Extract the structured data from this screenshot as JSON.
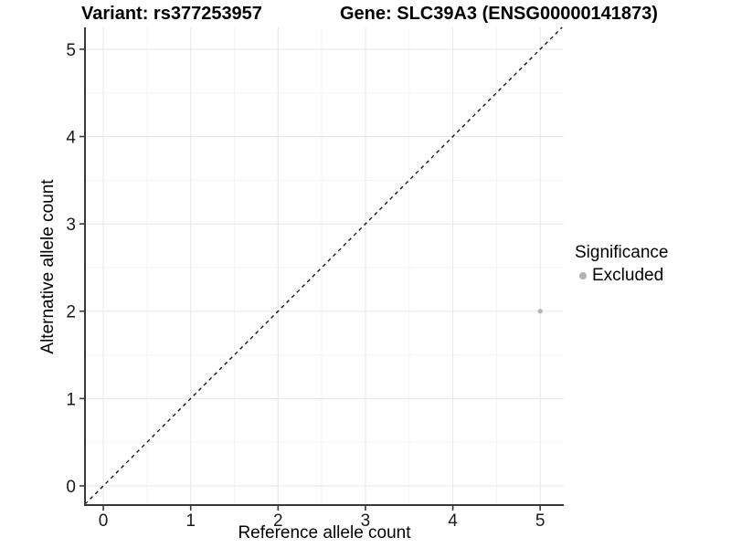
{
  "page": {
    "background_color": "#ffffff"
  },
  "chart_data": {
    "type": "scatter",
    "titles": {
      "left": "Variant: rs377253957",
      "right": "Gene: SLC39A3 (ENSG00000141873)"
    },
    "xlabel": "Reference allele count",
    "ylabel": "Alternative allele count",
    "x_ticks": [
      0,
      1,
      2,
      3,
      4,
      5
    ],
    "y_ticks": [
      0,
      1,
      2,
      3,
      4,
      5
    ],
    "xlim": [
      -0.21,
      5.27
    ],
    "ylim": [
      -0.22,
      5.25
    ],
    "grid": {
      "major": true,
      "minor": true
    },
    "points": [
      {
        "x": 5,
        "y": 2,
        "series": "Excluded"
      }
    ],
    "reference_line": {
      "kind": "identity-diagonal",
      "style": "dashed"
    },
    "legend": {
      "title": "Significance",
      "position": "right",
      "entries": [
        {
          "label": "Excluded",
          "color": "#b0b0b0"
        }
      ]
    },
    "colors": {
      "background": "#ffffff",
      "grid_major": "#e7e7e7",
      "grid_minor": "#f3f3f3",
      "axis_line": "#383838",
      "tick_mark": "#383838",
      "tick_text": "#1a1a1a",
      "point": "#b5b5b5",
      "reference_line": "#000000"
    }
  }
}
